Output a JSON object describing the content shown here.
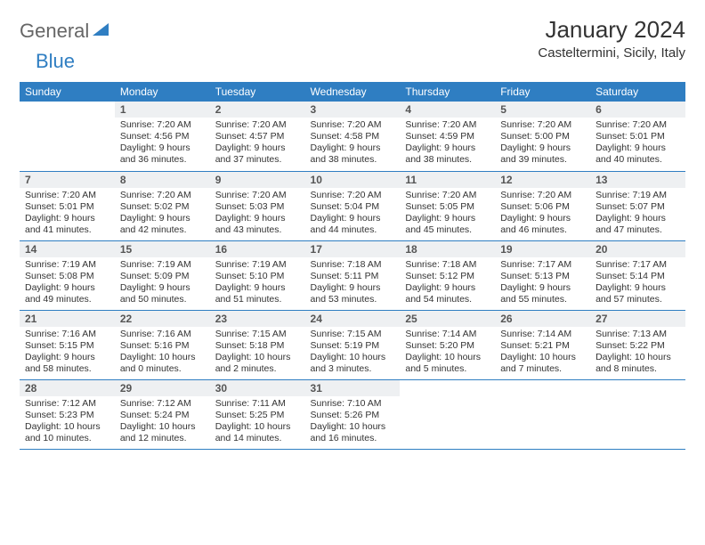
{
  "brand": {
    "part1": "General",
    "part2": "Blue"
  },
  "title": "January 2024",
  "location": "Casteltermini, Sicily, Italy",
  "colors": {
    "header_bg": "#2f7ec2",
    "header_fg": "#ffffff",
    "daynum_bg": "#eef0f2",
    "rule": "#2f7ec2"
  },
  "weekdays": [
    "Sunday",
    "Monday",
    "Tuesday",
    "Wednesday",
    "Thursday",
    "Friday",
    "Saturday"
  ],
  "weeks": [
    [
      {
        "n": "",
        "sr": "",
        "ss": "",
        "dl": ""
      },
      {
        "n": "1",
        "sr": "Sunrise: 7:20 AM",
        "ss": "Sunset: 4:56 PM",
        "dl": "Daylight: 9 hours and 36 minutes."
      },
      {
        "n": "2",
        "sr": "Sunrise: 7:20 AM",
        "ss": "Sunset: 4:57 PM",
        "dl": "Daylight: 9 hours and 37 minutes."
      },
      {
        "n": "3",
        "sr": "Sunrise: 7:20 AM",
        "ss": "Sunset: 4:58 PM",
        "dl": "Daylight: 9 hours and 38 minutes."
      },
      {
        "n": "4",
        "sr": "Sunrise: 7:20 AM",
        "ss": "Sunset: 4:59 PM",
        "dl": "Daylight: 9 hours and 38 minutes."
      },
      {
        "n": "5",
        "sr": "Sunrise: 7:20 AM",
        "ss": "Sunset: 5:00 PM",
        "dl": "Daylight: 9 hours and 39 minutes."
      },
      {
        "n": "6",
        "sr": "Sunrise: 7:20 AM",
        "ss": "Sunset: 5:01 PM",
        "dl": "Daylight: 9 hours and 40 minutes."
      }
    ],
    [
      {
        "n": "7",
        "sr": "Sunrise: 7:20 AM",
        "ss": "Sunset: 5:01 PM",
        "dl": "Daylight: 9 hours and 41 minutes."
      },
      {
        "n": "8",
        "sr": "Sunrise: 7:20 AM",
        "ss": "Sunset: 5:02 PM",
        "dl": "Daylight: 9 hours and 42 minutes."
      },
      {
        "n": "9",
        "sr": "Sunrise: 7:20 AM",
        "ss": "Sunset: 5:03 PM",
        "dl": "Daylight: 9 hours and 43 minutes."
      },
      {
        "n": "10",
        "sr": "Sunrise: 7:20 AM",
        "ss": "Sunset: 5:04 PM",
        "dl": "Daylight: 9 hours and 44 minutes."
      },
      {
        "n": "11",
        "sr": "Sunrise: 7:20 AM",
        "ss": "Sunset: 5:05 PM",
        "dl": "Daylight: 9 hours and 45 minutes."
      },
      {
        "n": "12",
        "sr": "Sunrise: 7:20 AM",
        "ss": "Sunset: 5:06 PM",
        "dl": "Daylight: 9 hours and 46 minutes."
      },
      {
        "n": "13",
        "sr": "Sunrise: 7:19 AM",
        "ss": "Sunset: 5:07 PM",
        "dl": "Daylight: 9 hours and 47 minutes."
      }
    ],
    [
      {
        "n": "14",
        "sr": "Sunrise: 7:19 AM",
        "ss": "Sunset: 5:08 PM",
        "dl": "Daylight: 9 hours and 49 minutes."
      },
      {
        "n": "15",
        "sr": "Sunrise: 7:19 AM",
        "ss": "Sunset: 5:09 PM",
        "dl": "Daylight: 9 hours and 50 minutes."
      },
      {
        "n": "16",
        "sr": "Sunrise: 7:19 AM",
        "ss": "Sunset: 5:10 PM",
        "dl": "Daylight: 9 hours and 51 minutes."
      },
      {
        "n": "17",
        "sr": "Sunrise: 7:18 AM",
        "ss": "Sunset: 5:11 PM",
        "dl": "Daylight: 9 hours and 53 minutes."
      },
      {
        "n": "18",
        "sr": "Sunrise: 7:18 AM",
        "ss": "Sunset: 5:12 PM",
        "dl": "Daylight: 9 hours and 54 minutes."
      },
      {
        "n": "19",
        "sr": "Sunrise: 7:17 AM",
        "ss": "Sunset: 5:13 PM",
        "dl": "Daylight: 9 hours and 55 minutes."
      },
      {
        "n": "20",
        "sr": "Sunrise: 7:17 AM",
        "ss": "Sunset: 5:14 PM",
        "dl": "Daylight: 9 hours and 57 minutes."
      }
    ],
    [
      {
        "n": "21",
        "sr": "Sunrise: 7:16 AM",
        "ss": "Sunset: 5:15 PM",
        "dl": "Daylight: 9 hours and 58 minutes."
      },
      {
        "n": "22",
        "sr": "Sunrise: 7:16 AM",
        "ss": "Sunset: 5:16 PM",
        "dl": "Daylight: 10 hours and 0 minutes."
      },
      {
        "n": "23",
        "sr": "Sunrise: 7:15 AM",
        "ss": "Sunset: 5:18 PM",
        "dl": "Daylight: 10 hours and 2 minutes."
      },
      {
        "n": "24",
        "sr": "Sunrise: 7:15 AM",
        "ss": "Sunset: 5:19 PM",
        "dl": "Daylight: 10 hours and 3 minutes."
      },
      {
        "n": "25",
        "sr": "Sunrise: 7:14 AM",
        "ss": "Sunset: 5:20 PM",
        "dl": "Daylight: 10 hours and 5 minutes."
      },
      {
        "n": "26",
        "sr": "Sunrise: 7:14 AM",
        "ss": "Sunset: 5:21 PM",
        "dl": "Daylight: 10 hours and 7 minutes."
      },
      {
        "n": "27",
        "sr": "Sunrise: 7:13 AM",
        "ss": "Sunset: 5:22 PM",
        "dl": "Daylight: 10 hours and 8 minutes."
      }
    ],
    [
      {
        "n": "28",
        "sr": "Sunrise: 7:12 AM",
        "ss": "Sunset: 5:23 PM",
        "dl": "Daylight: 10 hours and 10 minutes."
      },
      {
        "n": "29",
        "sr": "Sunrise: 7:12 AM",
        "ss": "Sunset: 5:24 PM",
        "dl": "Daylight: 10 hours and 12 minutes."
      },
      {
        "n": "30",
        "sr": "Sunrise: 7:11 AM",
        "ss": "Sunset: 5:25 PM",
        "dl": "Daylight: 10 hours and 14 minutes."
      },
      {
        "n": "31",
        "sr": "Sunrise: 7:10 AM",
        "ss": "Sunset: 5:26 PM",
        "dl": "Daylight: 10 hours and 16 minutes."
      },
      {
        "n": "",
        "sr": "",
        "ss": "",
        "dl": ""
      },
      {
        "n": "",
        "sr": "",
        "ss": "",
        "dl": ""
      },
      {
        "n": "",
        "sr": "",
        "ss": "",
        "dl": ""
      }
    ]
  ]
}
